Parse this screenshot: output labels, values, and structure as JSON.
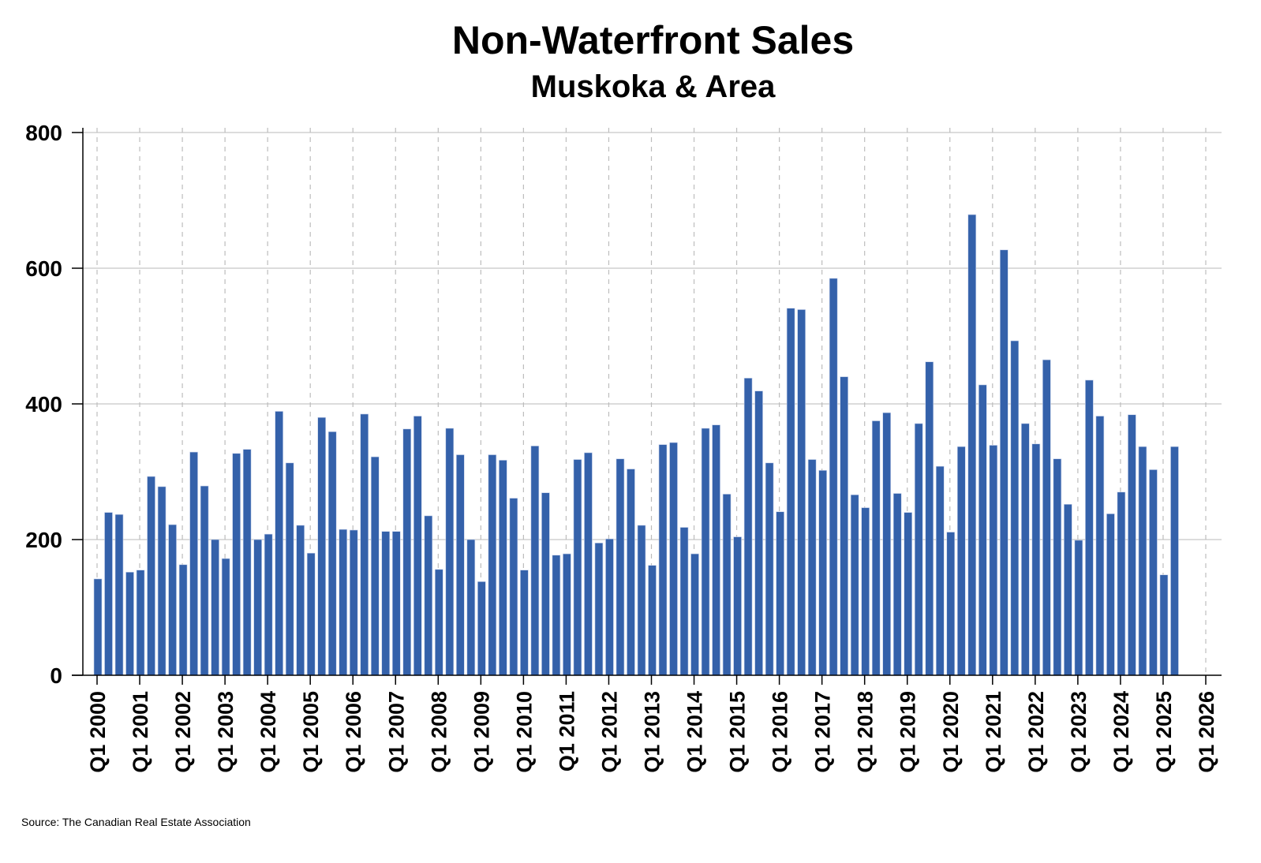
{
  "chart_data": {
    "type": "bar",
    "title": "Non-Waterfront Sales",
    "subtitle": "Muskoka & Area",
    "source": "Source: The Canadian Real Estate Association",
    "xlabel": "",
    "ylabel": "",
    "ylim": [
      0,
      800
    ],
    "yticks": [
      0,
      200,
      400,
      600,
      800
    ],
    "xtick_labels": [
      "Q1 2000",
      "Q1 2001",
      "Q1 2002",
      "Q1 2003",
      "Q1 2004",
      "Q1 2005",
      "Q1 2006",
      "Q1 2007",
      "Q1 2008",
      "Q1 2009",
      "Q1 2010",
      "Q1 2011",
      "Q1 2012",
      "Q1 2013",
      "Q1 2014",
      "Q1 2015",
      "Q1 2016",
      "Q1 2017",
      "Q1 2018",
      "Q1 2019",
      "Q1 2020",
      "Q1 2021",
      "Q1 2022",
      "Q1 2023",
      "Q1 2024",
      "Q1 2025",
      "Q1 2026"
    ],
    "x_start": "Q1 2000",
    "x_end": "Q2 2025",
    "grid": {
      "horizontal": "solid",
      "vertical": "dashed"
    },
    "bar_color": "#3461AA",
    "values": [
      142,
      240,
      237,
      152,
      155,
      293,
      278,
      222,
      163,
      329,
      279,
      200,
      172,
      327,
      333,
      200,
      208,
      389,
      313,
      221,
      180,
      380,
      359,
      215,
      214,
      385,
      322,
      212,
      212,
      363,
      382,
      235,
      156,
      364,
      325,
      200,
      138,
      325,
      317,
      261,
      155,
      338,
      269,
      177,
      179,
      318,
      328,
      195,
      201,
      319,
      304,
      221,
      162,
      340,
      343,
      218,
      179,
      364,
      369,
      267,
      204,
      438,
      419,
      313,
      241,
      541,
      539,
      318,
      302,
      585,
      440,
      266,
      247,
      375,
      387,
      268,
      240,
      371,
      462,
      308,
      211,
      337,
      679,
      428,
      339,
      627,
      493,
      371,
      341,
      465,
      319,
      252,
      199,
      435,
      382,
      238,
      270,
      384,
      337,
      303,
      148,
      337
    ]
  }
}
